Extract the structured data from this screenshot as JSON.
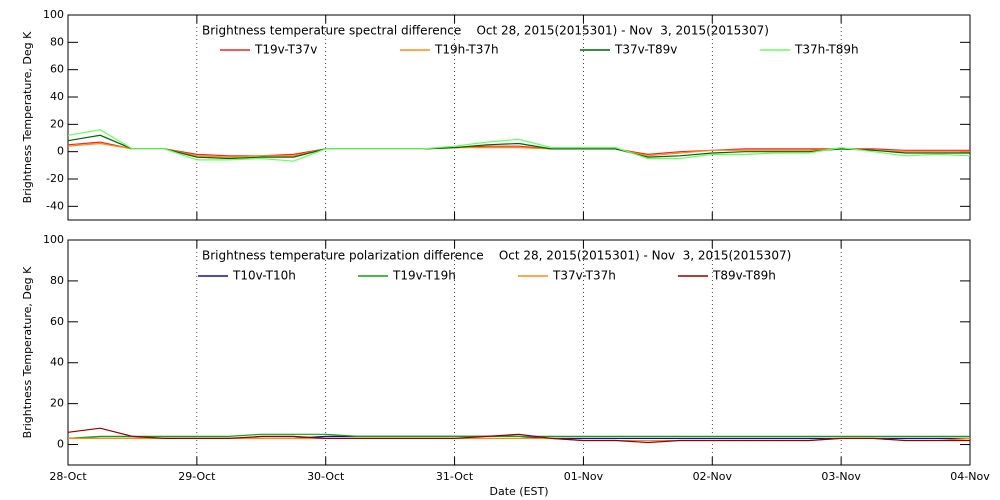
{
  "chart_data": [
    {
      "type": "line",
      "title": "Brightness temperature spectral difference    Oct 28, 2015(2015301) - Nov  3, 2015(2015307)",
      "ylabel": "Brightness Temperature, Deg K",
      "x": [
        0,
        0.25,
        0.5,
        0.75,
        1,
        1.25,
        1.5,
        1.75,
        2,
        2.25,
        2.5,
        2.75,
        3,
        3.25,
        3.5,
        3.75,
        4,
        4.25,
        4.5,
        4.75,
        5,
        5.25,
        5.5,
        5.75,
        6,
        6.25,
        6.5,
        6.75,
        7
      ],
      "xlim": [
        0,
        7
      ],
      "xticks": [
        0,
        1,
        2,
        3,
        4,
        5,
        6,
        7
      ],
      "ylim": [
        -50,
        100
      ],
      "yticks": [
        -40,
        -20,
        0,
        20,
        40,
        60,
        80,
        100
      ],
      "grid": true,
      "series": [
        {
          "name": "T19v-T37v",
          "color": "#e8281e",
          "values": [
            5,
            7,
            2,
            2,
            -2,
            -3,
            -3,
            -2,
            2,
            2,
            2,
            2,
            3,
            4,
            4,
            2,
            2,
            2,
            -2,
            0,
            1,
            2,
            2,
            2,
            2,
            2,
            1,
            1,
            1
          ]
        },
        {
          "name": "T19h-T37h",
          "color": "#ff8c1a",
          "values": [
            4,
            6,
            2,
            2,
            -3,
            -4,
            -3,
            -3,
            2,
            2,
            2,
            2,
            3,
            3,
            3,
            2,
            2,
            2,
            -3,
            -1,
            1,
            1,
            1,
            1,
            2,
            1,
            0,
            0,
            0
          ]
        },
        {
          "name": "T37v-T89v",
          "color": "#006400",
          "values": [
            8,
            12,
            2,
            2,
            -4,
            -5,
            -4,
            -4,
            2,
            2,
            2,
            2,
            3,
            5,
            6,
            2,
            2,
            2,
            -4,
            -3,
            -1,
            0,
            0,
            0,
            2,
            1,
            -1,
            -1,
            -1
          ]
        },
        {
          "name": "T37h-T89h",
          "color": "#66ff66",
          "values": [
            12,
            16,
            2,
            2,
            -6,
            -6,
            -5,
            -7,
            2,
            2,
            2,
            2,
            4,
            7,
            9,
            3,
            3,
            3,
            -5,
            -5,
            -2,
            -2,
            -1,
            -1,
            3,
            0,
            -3,
            -2,
            -3
          ]
        }
      ]
    },
    {
      "type": "line",
      "title": "Brightness temperature polarization difference    Oct 28, 2015(2015301) - Nov  3, 2015(2015307)",
      "ylabel": "Brightness Temperature, Deg K",
      "xlabel": "Date (EST)",
      "x": [
        0,
        0.25,
        0.5,
        0.75,
        1,
        1.25,
        1.5,
        1.75,
        2,
        2.25,
        2.5,
        2.75,
        3,
        3.25,
        3.5,
        3.75,
        4,
        4.25,
        4.5,
        4.75,
        5,
        5.25,
        5.5,
        5.75,
        6,
        6.25,
        6.5,
        6.75,
        7
      ],
      "xlim": [
        0,
        7
      ],
      "xticks": [
        {
          "value": 0,
          "label": "28-Oct"
        },
        {
          "value": 1,
          "label": "29-Oct"
        },
        {
          "value": 2,
          "label": "30-Oct"
        },
        {
          "value": 3,
          "label": "31-Oct"
        },
        {
          "value": 4,
          "label": "01-Nov"
        },
        {
          "value": 5,
          "label": "02-Nov"
        },
        {
          "value": 6,
          "label": "03-Nov"
        },
        {
          "value": 7,
          "label": "04-Nov"
        }
      ],
      "ylim": [
        -10,
        100
      ],
      "yticks": [
        0,
        20,
        40,
        60,
        80,
        100
      ],
      "grid": true,
      "series": [
        {
          "name": "T10v-T10h",
          "color": "#1010a0",
          "values": [
            3,
            3,
            3,
            3,
            3,
            3,
            3,
            3,
            4,
            4,
            4,
            4,
            4,
            4,
            4,
            3,
            3,
            3,
            3,
            3,
            3,
            3,
            3,
            3,
            3,
            3,
            3,
            3,
            3
          ]
        },
        {
          "name": "T19v-T19h",
          "color": "#10a010",
          "values": [
            3,
            4,
            4,
            4,
            4,
            4,
            5,
            5,
            5,
            4,
            4,
            4,
            4,
            4,
            4,
            4,
            4,
            4,
            4,
            4,
            4,
            4,
            4,
            4,
            4,
            4,
            4,
            4,
            4
          ]
        },
        {
          "name": "T37v-T37h",
          "color": "#ff8c1a",
          "values": [
            3,
            3,
            3,
            3,
            3,
            3,
            3,
            3,
            3,
            3,
            3,
            3,
            3,
            3,
            3,
            3,
            2,
            2,
            2,
            2,
            2,
            2,
            2,
            2,
            3,
            3,
            2,
            2,
            3
          ]
        },
        {
          "name": "T89v-T89h",
          "color": "#900000",
          "values": [
            6,
            8,
            4,
            3,
            3,
            3,
            4,
            4,
            3,
            3,
            3,
            3,
            3,
            4,
            5,
            3,
            2,
            2,
            1,
            2,
            2,
            2,
            2,
            2,
            3,
            3,
            2,
            2,
            2
          ]
        }
      ]
    }
  ]
}
